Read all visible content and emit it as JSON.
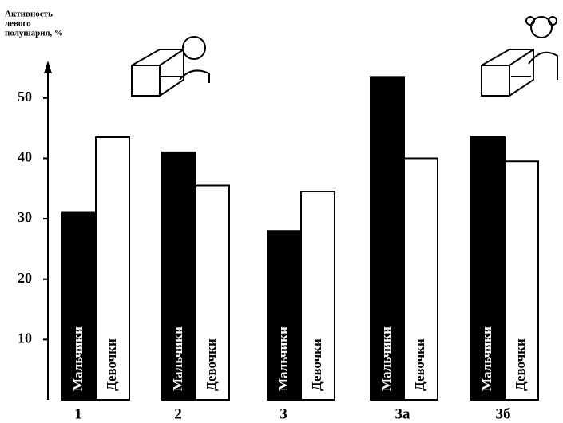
{
  "chart_data": {
    "type": "bar",
    "y_label_lines": [
      "Активность",
      "левого",
      "полушария, %"
    ],
    "categories": [
      "1",
      "2",
      "3",
      "3а",
      "3б"
    ],
    "series": [
      {
        "name": "Мальчики",
        "color": "#000000",
        "values": [
          31,
          41,
          28,
          53.5,
          43.5
        ]
      },
      {
        "name": "Девочки",
        "color": "#ffffff",
        "values": [
          43.5,
          35.5,
          34.5,
          40,
          39.5
        ]
      }
    ],
    "ylim": [
      0,
      55
    ],
    "yticks": [
      10,
      20,
      30,
      40,
      50
    ],
    "grid": false
  }
}
